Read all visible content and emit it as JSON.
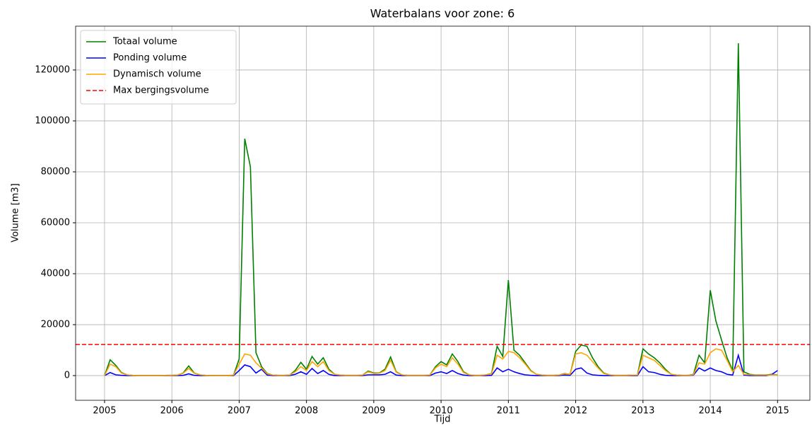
{
  "chart_data": {
    "type": "line",
    "title": "Waterbalans voor zone: 6",
    "x_label": "Tijd",
    "y_label": "Volume [m3]",
    "x": [
      2005,
      2005.083,
      2005.167,
      2005.25,
      2005.333,
      2005.417,
      2005.5,
      2005.583,
      2005.667,
      2005.75,
      2005.833,
      2005.917,
      2006,
      2006.083,
      2006.167,
      2006.25,
      2006.333,
      2006.417,
      2006.5,
      2006.583,
      2006.667,
      2006.75,
      2006.833,
      2006.917,
      2007,
      2007.083,
      2007.167,
      2007.25,
      2007.333,
      2007.417,
      2007.5,
      2007.583,
      2007.667,
      2007.75,
      2007.833,
      2007.917,
      2008,
      2008.083,
      2008.167,
      2008.25,
      2008.333,
      2008.417,
      2008.5,
      2008.583,
      2008.667,
      2008.75,
      2008.833,
      2008.917,
      2009,
      2009.083,
      2009.167,
      2009.25,
      2009.333,
      2009.417,
      2009.5,
      2009.583,
      2009.667,
      2009.75,
      2009.833,
      2009.917,
      2010,
      2010.083,
      2010.167,
      2010.25,
      2010.333,
      2010.417,
      2010.5,
      2010.583,
      2010.667,
      2010.75,
      2010.833,
      2010.917,
      2011,
      2011.083,
      2011.167,
      2011.25,
      2011.333,
      2011.417,
      2011.5,
      2011.583,
      2011.667,
      2011.75,
      2011.833,
      2011.917,
      2012,
      2012.083,
      2012.167,
      2012.25,
      2012.333,
      2012.417,
      2012.5,
      2012.583,
      2012.667,
      2012.75,
      2012.833,
      2012.917,
      2013,
      2013.083,
      2013.167,
      2013.25,
      2013.333,
      2013.417,
      2013.5,
      2013.583,
      2013.667,
      2013.75,
      2013.833,
      2013.917,
      2014,
      2014.083,
      2014.167,
      2014.25,
      2014.333,
      2014.417,
      2014.5,
      2014.583,
      2014.667,
      2014.75,
      2014.833,
      2014.917,
      2015
    ],
    "series": [
      {
        "name": "Totaal volume",
        "color": "#008000",
        "values": [
          0,
          6200,
          4000,
          1200,
          300,
          100,
          0,
          0,
          0,
          0,
          0,
          100,
          100,
          200,
          1000,
          3800,
          1000,
          300,
          100,
          0,
          0,
          0,
          0,
          200,
          6500,
          93000,
          82000,
          9000,
          3500,
          800,
          200,
          100,
          100,
          200,
          2000,
          5200,
          2500,
          7500,
          4500,
          7000,
          2500,
          500,
          200,
          100,
          100,
          100,
          200,
          1800,
          1000,
          1000,
          2500,
          7300,
          1500,
          300,
          100,
          100,
          100,
          100,
          200,
          3500,
          5500,
          4200,
          8500,
          5500,
          1500,
          300,
          100,
          100,
          300,
          800,
          11500,
          7500,
          37500,
          10000,
          8000,
          5000,
          2000,
          500,
          200,
          100,
          100,
          200,
          800,
          500,
          9500,
          12000,
          11500,
          7000,
          3500,
          1000,
          300,
          100,
          100,
          100,
          200,
          200,
          10500,
          8500,
          7000,
          5000,
          2500,
          500,
          200,
          100,
          100,
          500,
          8000,
          5000,
          33500,
          21500,
          14000,
          7000,
          2000,
          130500,
          1500,
          500,
          300,
          300,
          300,
          500,
          300
        ]
      },
      {
        "name": "Ponding volume",
        "color": "#0000ff",
        "values": [
          0,
          1200,
          300,
          100,
          0,
          0,
          0,
          0,
          0,
          0,
          0,
          0,
          0,
          0,
          100,
          700,
          100,
          0,
          0,
          0,
          0,
          0,
          0,
          0,
          2000,
          4200,
          3500,
          1000,
          2500,
          200,
          0,
          0,
          0,
          0,
          500,
          1500,
          500,
          2800,
          800,
          2000,
          500,
          0,
          0,
          0,
          0,
          0,
          0,
          300,
          300,
          300,
          500,
          1500,
          200,
          0,
          0,
          0,
          0,
          0,
          0,
          1000,
          1500,
          800,
          2000,
          800,
          200,
          0,
          0,
          0,
          0,
          100,
          3000,
          1500,
          2500,
          1500,
          800,
          300,
          100,
          0,
          0,
          0,
          0,
          0,
          200,
          100,
          2500,
          3000,
          1000,
          300,
          100,
          0,
          0,
          0,
          0,
          0,
          0,
          0,
          3500,
          1500,
          1200,
          500,
          100,
          0,
          0,
          0,
          0,
          200,
          3000,
          1800,
          3000,
          2000,
          1500,
          500,
          200,
          8000,
          200,
          0,
          0,
          0,
          0,
          500,
          2000
        ]
      },
      {
        "name": "Dynamisch volume",
        "color": "#ffa500",
        "values": [
          0,
          4500,
          3500,
          1000,
          300,
          100,
          0,
          0,
          0,
          0,
          0,
          100,
          100,
          200,
          900,
          2800,
          900,
          300,
          100,
          0,
          0,
          0,
          0,
          200,
          4500,
          8500,
          8000,
          5000,
          3000,
          700,
          200,
          100,
          100,
          200,
          1500,
          3500,
          2000,
          5500,
          3500,
          5500,
          2000,
          500,
          200,
          100,
          100,
          100,
          200,
          1500,
          800,
          900,
          2000,
          6000,
          1300,
          300,
          100,
          100,
          100,
          100,
          200,
          3000,
          4500,
          3500,
          7000,
          4500,
          1200,
          300,
          100,
          100,
          300,
          700,
          8000,
          6500,
          9500,
          9000,
          7000,
          4500,
          1800,
          500,
          200,
          100,
          100,
          200,
          700,
          500,
          8500,
          9000,
          8000,
          5500,
          3000,
          800,
          300,
          100,
          100,
          100,
          200,
          200,
          8000,
          7000,
          6000,
          4000,
          2000,
          500,
          200,
          100,
          100,
          400,
          5000,
          4500,
          9000,
          10500,
          10000,
          6000,
          1500,
          4000,
          500,
          300,
          200,
          200,
          200,
          300,
          300
        ]
      }
    ],
    "hlines": [
      {
        "name": "Max bergingsvolume",
        "color": "#ff0000",
        "value": 12200,
        "dashed": true
      }
    ],
    "xlim": [
      2004.57,
      2015.48
    ],
    "ylim": [
      -9700,
      137200
    ],
    "xticks": [
      2005,
      2006,
      2007,
      2008,
      2009,
      2010,
      2011,
      2012,
      2013,
      2014,
      2015
    ],
    "yticks": [
      0,
      20000,
      40000,
      60000,
      80000,
      100000,
      120000
    ],
    "grid": true,
    "legend": "upper left"
  }
}
